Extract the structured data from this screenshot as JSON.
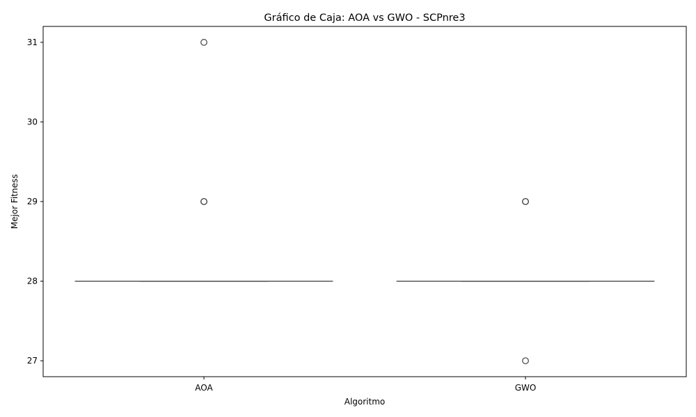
{
  "chart_data": {
    "type": "box",
    "title": "Gráfico de Caja: AOA vs GWO - SCPnre3",
    "xlabel": "Algoritmo",
    "ylabel": "Mejor Fitness",
    "categories": [
      "AOA",
      "GWO"
    ],
    "ylim": [
      26.8,
      31.2
    ],
    "yticks": [
      27,
      28,
      29,
      30,
      31
    ],
    "grid": false,
    "series": [
      {
        "category": "AOA",
        "whisker_low": 28,
        "q1": 28,
        "median": 28,
        "q3": 28,
        "whisker_high": 28,
        "outliers": [
          29,
          29,
          31
        ]
      },
      {
        "category": "GWO",
        "whisker_low": 28,
        "q1": 28,
        "median": 28,
        "q3": 28,
        "whisker_high": 28,
        "outliers": [
          27,
          29,
          29
        ]
      }
    ],
    "colors": {
      "box_line": "#3f3f3f",
      "box_fill": "#ffffff",
      "axis": "#000000"
    }
  }
}
